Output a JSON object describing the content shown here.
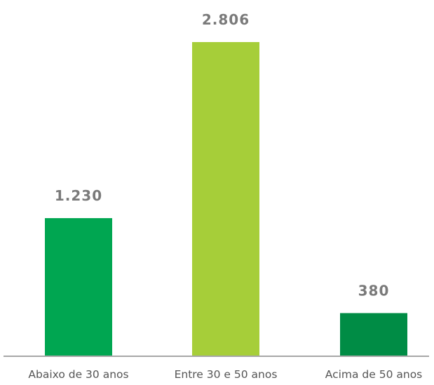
{
  "chart_data": {
    "type": "bar",
    "categories": [
      "Abaixo de 30 anos",
      "Entre 30 e 50 anos",
      "Acima de 50 anos"
    ],
    "values": [
      1230,
      2806,
      380
    ],
    "value_labels": [
      "1.230",
      "2.806",
      "380"
    ],
    "colors": [
      "#00a651",
      "#a6ce39",
      "#008c45"
    ],
    "ylim": [
      0,
      2806
    ],
    "grid": false,
    "title": "",
    "xlabel": "",
    "ylabel": ""
  }
}
